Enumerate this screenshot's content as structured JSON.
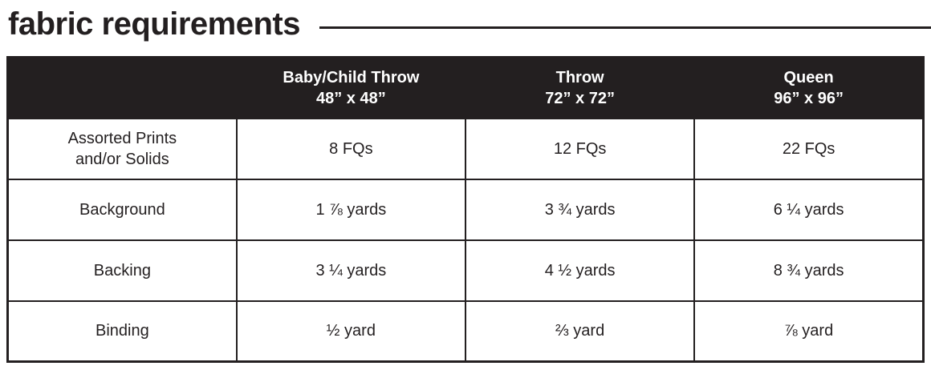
{
  "page": {
    "title": "fabric requirements"
  },
  "colors": {
    "ink": "#231f20",
    "header_bg": "#231f20",
    "header_text": "#ffffff",
    "page_bg": "#ffffff"
  },
  "table": {
    "columns": [
      {
        "label": "",
        "size": ""
      },
      {
        "label": "Baby/Child Throw",
        "size": "48” x 48”"
      },
      {
        "label": "Throw",
        "size": "72” x 72”"
      },
      {
        "label": "Queen",
        "size": "96” x 96”"
      }
    ],
    "rows": [
      {
        "label": "Assorted Prints\nand/or Solids",
        "values": [
          "8 FQs",
          "12 FQs",
          "22 FQs"
        ]
      },
      {
        "label": "Background",
        "values": [
          "1 ⅞ yards",
          "3 ¾ yards",
          "6 ¼ yards"
        ]
      },
      {
        "label": "Backing",
        "values": [
          "3 ¼ yards",
          "4 ½ yards",
          "8 ¾ yards"
        ]
      },
      {
        "label": "Binding",
        "values": [
          "½ yard",
          "⅔ yard",
          "⅞ yard"
        ]
      }
    ]
  }
}
